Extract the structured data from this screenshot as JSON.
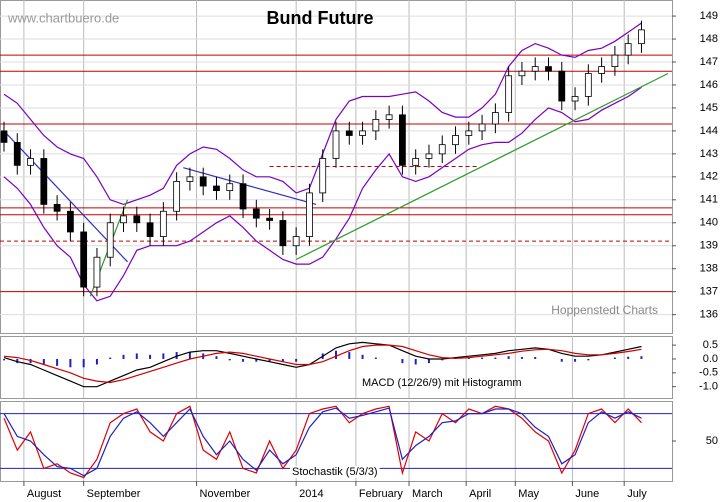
{
  "chart_data": [
    {
      "type": "candlestick",
      "title": "Bund Future",
      "source": "www.chartbuero.de",
      "credit": "Hoppenstedt Charts",
      "x": [
        0,
        1,
        2,
        3,
        4,
        5,
        6,
        7,
        8,
        9,
        10,
        11,
        12,
        13,
        14,
        15,
        16,
        17,
        18,
        19,
        20,
        21,
        22,
        23,
        24,
        25,
        26,
        27,
        28,
        29,
        30,
        31,
        32,
        33,
        34,
        35,
        36,
        37,
        38,
        39,
        40,
        41,
        42,
        43,
        44,
        45,
        46,
        47,
        48
      ],
      "xlim": [
        -0.3,
        50.3
      ],
      "xticks": [
        {
          "value": 1.5,
          "label": "August"
        },
        {
          "value": 6,
          "label": "September"
        },
        {
          "value": 14.5,
          "label": "November"
        },
        {
          "value": 22,
          "label": "2014"
        },
        {
          "value": 26.5,
          "label": "February"
        },
        {
          "value": 30.5,
          "label": "March"
        },
        {
          "value": 34.8,
          "label": "April"
        },
        {
          "value": 38.5,
          "label": "May"
        },
        {
          "value": 42.8,
          "label": "June"
        },
        {
          "value": 46.7,
          "label": "July"
        }
      ],
      "ylim": [
        135.2,
        149.7
      ],
      "yticks": [
        136,
        137,
        138,
        139,
        140,
        141,
        142,
        143,
        144,
        145,
        146,
        147,
        148,
        149
      ],
      "grid": true,
      "open": [
        144.0,
        143.5,
        142.5,
        142.8,
        140.8,
        140.5,
        139.6,
        137.2,
        138.5,
        140.0,
        140.3,
        140.0,
        139.4,
        140.5,
        141.8,
        142.0,
        141.6,
        141.4,
        141.7,
        140.6,
        140.2,
        140.1,
        139.0,
        139.4,
        141.3,
        142.8,
        144.0,
        143.8,
        144.0,
        144.5,
        144.7,
        142.5,
        142.8,
        143.0,
        143.4,
        143.8,
        144.0,
        144.3,
        144.8,
        146.4,
        146.6,
        146.8,
        146.6,
        145.3,
        145.5,
        146.5,
        146.8,
        147.3,
        147.8
      ],
      "high": [
        144.4,
        143.9,
        143.2,
        143.2,
        141.2,
        140.9,
        140.0,
        138.9,
        140.4,
        140.7,
        140.7,
        140.4,
        140.9,
        142.2,
        142.4,
        142.4,
        142.0,
        142.1,
        142.1,
        141.0,
        140.6,
        140.5,
        139.8,
        141.7,
        143.2,
        144.4,
        144.4,
        144.4,
        144.9,
        145.1,
        145.1,
        143.2,
        143.4,
        143.8,
        144.2,
        144.4,
        144.7,
        145.2,
        146.8,
        147.0,
        147.2,
        147.2,
        147.0,
        145.9,
        146.9,
        147.2,
        147.7,
        148.2,
        148.8
      ],
      "low": [
        143.1,
        142.1,
        142.1,
        140.4,
        140.1,
        139.2,
        136.8,
        136.8,
        138.1,
        139.6,
        139.6,
        139.0,
        139.0,
        140.1,
        141.4,
        141.2,
        141.0,
        141.0,
        140.2,
        139.8,
        139.7,
        138.6,
        138.6,
        139.0,
        140.9,
        142.4,
        143.4,
        143.4,
        143.6,
        144.1,
        142.1,
        142.1,
        142.4,
        142.6,
        143.0,
        143.4,
        143.6,
        143.9,
        144.4,
        146.0,
        146.2,
        146.2,
        144.9,
        144.9,
        145.1,
        146.1,
        146.4,
        146.9,
        147.4
      ],
      "close": [
        143.5,
        142.5,
        142.8,
        140.8,
        140.5,
        139.6,
        137.2,
        138.5,
        140.0,
        140.3,
        140.0,
        139.4,
        140.5,
        141.8,
        142.0,
        141.6,
        141.4,
        141.7,
        140.6,
        140.2,
        140.1,
        139.0,
        139.4,
        141.3,
        142.8,
        144.0,
        143.8,
        144.0,
        144.5,
        144.7,
        142.5,
        142.8,
        143.0,
        143.4,
        143.8,
        144.0,
        144.3,
        144.8,
        146.4,
        146.6,
        146.8,
        146.6,
        145.3,
        145.5,
        146.5,
        146.8,
        147.3,
        147.8,
        148.4
      ],
      "series": [
        {
          "color": "#7a00c0",
          "values": [
            145.6,
            145.2,
            144.5,
            143.8,
            143.3,
            143.0,
            142.8,
            142.0,
            141.0,
            140.8,
            141.0,
            141.2,
            141.5,
            142.5,
            143.0,
            143.3,
            143.2,
            142.8,
            142.3,
            142.0,
            142.0,
            141.8,
            141.3,
            141.5,
            143.0,
            144.5,
            145.3,
            145.5,
            145.5,
            145.5,
            145.6,
            145.7,
            145.3,
            144.8,
            144.6,
            144.6,
            145.0,
            145.6,
            146.8,
            147.5,
            147.8,
            147.6,
            147.3,
            147.2,
            147.5,
            147.6,
            147.9,
            148.3,
            148.7
          ]
        },
        {
          "color": "#7a00c0",
          "values": [
            142.0,
            141.5,
            140.8,
            139.8,
            139.0,
            138.5,
            137.3,
            136.6,
            136.8,
            137.7,
            138.8,
            139.0,
            139.0,
            139.0,
            139.2,
            139.6,
            140.0,
            140.3,
            139.8,
            139.2,
            138.8,
            138.4,
            138.2,
            138.2,
            138.5,
            139.3,
            140.2,
            141.5,
            142.3,
            143.0,
            142.0,
            141.8,
            142.0,
            142.4,
            142.8,
            143.2,
            143.4,
            143.5,
            143.5,
            143.9,
            144.5,
            145.0,
            144.8,
            144.4,
            144.5,
            144.9,
            145.2,
            145.5,
            145.9
          ]
        }
      ],
      "hlines": [
        {
          "value": 147.3,
          "color": "#c00000",
          "style": "solid"
        },
        {
          "value": 146.6,
          "color": "#c00000",
          "style": "solid"
        },
        {
          "value": 144.3,
          "color": "#c00000",
          "style": "solid"
        },
        {
          "value": 140.65,
          "color": "#c00000",
          "style": "solid"
        },
        {
          "value": 140.35,
          "color": "#c00000",
          "style": "solid"
        },
        {
          "value": 139.2,
          "color": "#c00000",
          "style": "dashed"
        },
        {
          "value": 137.0,
          "color": "#c00000",
          "style": "solid"
        },
        {
          "value": 142.45,
          "color": "#c00000",
          "style": "dashed",
          "from": 20,
          "to": 35.8
        }
      ],
      "trendlines": [
        {
          "x1": 22,
          "y1": 138.4,
          "x2": 50,
          "y2": 146.5,
          "color": "#2a9a2a"
        },
        {
          "x1": 6.5,
          "y1": 136.8,
          "x2": 9.3,
          "y2": 141.0,
          "color": "#2a9a2a"
        },
        {
          "x1": 13.5,
          "y1": 142.4,
          "x2": 23.5,
          "y2": 140.8,
          "color": "#3030c0"
        },
        {
          "x1": 0,
          "y1": 144.0,
          "x2": 9.3,
          "y2": 138.3,
          "color": "#3030c0"
        }
      ]
    },
    {
      "type": "macd",
      "label": "MACD (12/26/9) mit Histogramm",
      "ylim": [
        -1.41,
        0.83
      ],
      "yticks": [
        0.5,
        {
          "value": 0,
          "label": "0.0"
        },
        -0.5,
        {
          "value": -1,
          "label": "-1.0"
        }
      ],
      "series": [
        {
          "color": "#000000",
          "values": [
            0.05,
            -0.1,
            -0.2,
            -0.4,
            -0.6,
            -0.8,
            -1.0,
            -1.0,
            -0.8,
            -0.6,
            -0.4,
            -0.3,
            -0.1,
            0.1,
            0.25,
            0.3,
            0.3,
            0.2,
            0.1,
            0.0,
            -0.1,
            -0.2,
            -0.3,
            -0.2,
            0.1,
            0.4,
            0.55,
            0.6,
            0.55,
            0.5,
            0.3,
            0.1,
            0.0,
            0.0,
            0.05,
            0.1,
            0.15,
            0.2,
            0.3,
            0.35,
            0.4,
            0.35,
            0.2,
            0.1,
            0.1,
            0.15,
            0.25,
            0.35,
            0.45
          ]
        },
        {
          "color": "#d00000",
          "values": [
            0.1,
            0.05,
            -0.05,
            -0.2,
            -0.35,
            -0.5,
            -0.7,
            -0.8,
            -0.85,
            -0.75,
            -0.6,
            -0.45,
            -0.3,
            -0.15,
            0.0,
            0.1,
            0.2,
            0.25,
            0.2,
            0.1,
            0.0,
            -0.1,
            -0.2,
            -0.2,
            -0.1,
            0.1,
            0.3,
            0.45,
            0.5,
            0.5,
            0.45,
            0.3,
            0.15,
            0.05,
            0.02,
            0.05,
            0.1,
            0.15,
            0.2,
            0.28,
            0.33,
            0.35,
            0.3,
            0.2,
            0.15,
            0.15,
            0.2,
            0.27,
            0.35
          ]
        }
      ],
      "histogram": {
        "color": "#2020c0",
        "values": [
          -0.05,
          -0.15,
          -0.15,
          -0.2,
          -0.25,
          -0.3,
          -0.3,
          -0.2,
          0.05,
          0.15,
          0.2,
          0.15,
          0.2,
          0.25,
          0.25,
          0.2,
          0.1,
          -0.05,
          -0.1,
          -0.1,
          -0.1,
          -0.1,
          -0.1,
          0.0,
          0.2,
          0.3,
          0.25,
          0.15,
          0.05,
          0.0,
          -0.15,
          -0.2,
          -0.15,
          -0.05,
          0.03,
          0.05,
          0.05,
          0.05,
          0.1,
          0.07,
          0.07,
          0.0,
          -0.1,
          -0.1,
          -0.05,
          0.0,
          0.05,
          0.08,
          0.1
        ]
      }
    },
    {
      "type": "line",
      "label": "Stochastik (5/3/3)",
      "ylim": [
        6.2,
        93.8
      ],
      "yticks": [
        50
      ],
      "hlines": [
        {
          "value": 80,
          "color": "#2020c0",
          "style": "solid"
        },
        {
          "value": 20,
          "color": "#2020c0",
          "style": "solid"
        }
      ],
      "series": [
        {
          "color": "#e00000",
          "values": [
            75,
            40,
            60,
            20,
            25,
            15,
            10,
            30,
            70,
            80,
            85,
            60,
            50,
            80,
            88,
            40,
            30,
            60,
            20,
            15,
            50,
            20,
            40,
            80,
            85,
            88,
            70,
            80,
            85,
            88,
            15,
            60,
            50,
            80,
            70,
            85,
            80,
            88,
            85,
            75,
            60,
            50,
            15,
            40,
            80,
            85,
            70,
            85,
            70
          ]
        },
        {
          "color": "#2020c0",
          "values": [
            80,
            55,
            50,
            35,
            22,
            20,
            12,
            20,
            55,
            75,
            82,
            70,
            55,
            70,
            85,
            55,
            35,
            50,
            30,
            18,
            40,
            25,
            35,
            65,
            82,
            86,
            75,
            78,
            82,
            86,
            30,
            45,
            55,
            70,
            72,
            80,
            80,
            85,
            85,
            80,
            65,
            55,
            25,
            35,
            70,
            82,
            75,
            82,
            75
          ]
        }
      ]
    }
  ]
}
